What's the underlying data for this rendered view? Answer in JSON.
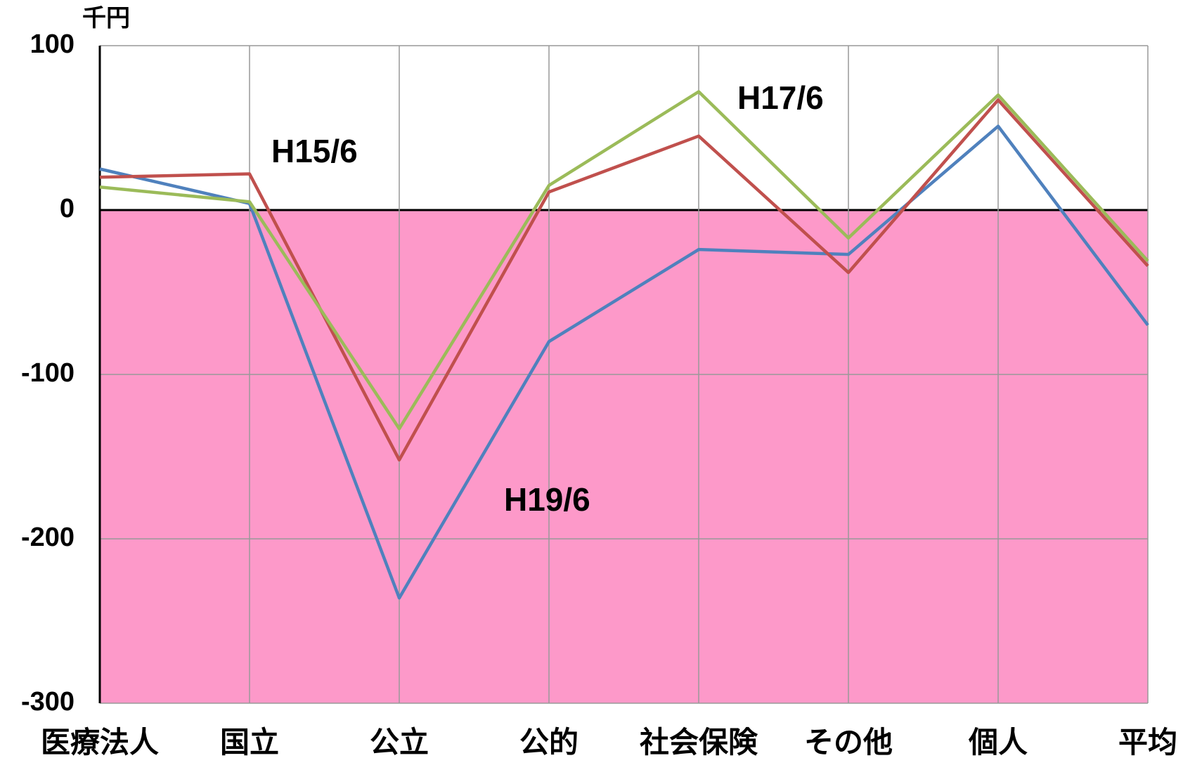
{
  "chart_data": {
    "type": "line",
    "y_label": "千円",
    "categories": [
      "医療法人",
      "国立",
      "公立",
      "公的",
      "社会保険",
      "その他",
      "個人",
      "平均"
    ],
    "series": [
      {
        "name": "H19/6",
        "color": "#4f81bd",
        "values": [
          25,
          4,
          -236,
          -80,
          -24,
          -27,
          51,
          -70
        ]
      },
      {
        "name": "H15/6",
        "color": "#c0504d",
        "values": [
          20,
          22,
          -152,
          11,
          45,
          -38,
          67,
          -34
        ]
      },
      {
        "name": "H17/6",
        "color": "#9bbb59",
        "values": [
          14,
          5,
          -133,
          15,
          72,
          -17,
          70,
          -31
        ]
      }
    ],
    "ylim": [
      -300,
      100
    ],
    "yticks": [
      100,
      0,
      -100,
      -200,
      -300
    ],
    "grid": true,
    "negative_fill": "#fd99c9",
    "negative_tick_color": "#ff0000"
  }
}
